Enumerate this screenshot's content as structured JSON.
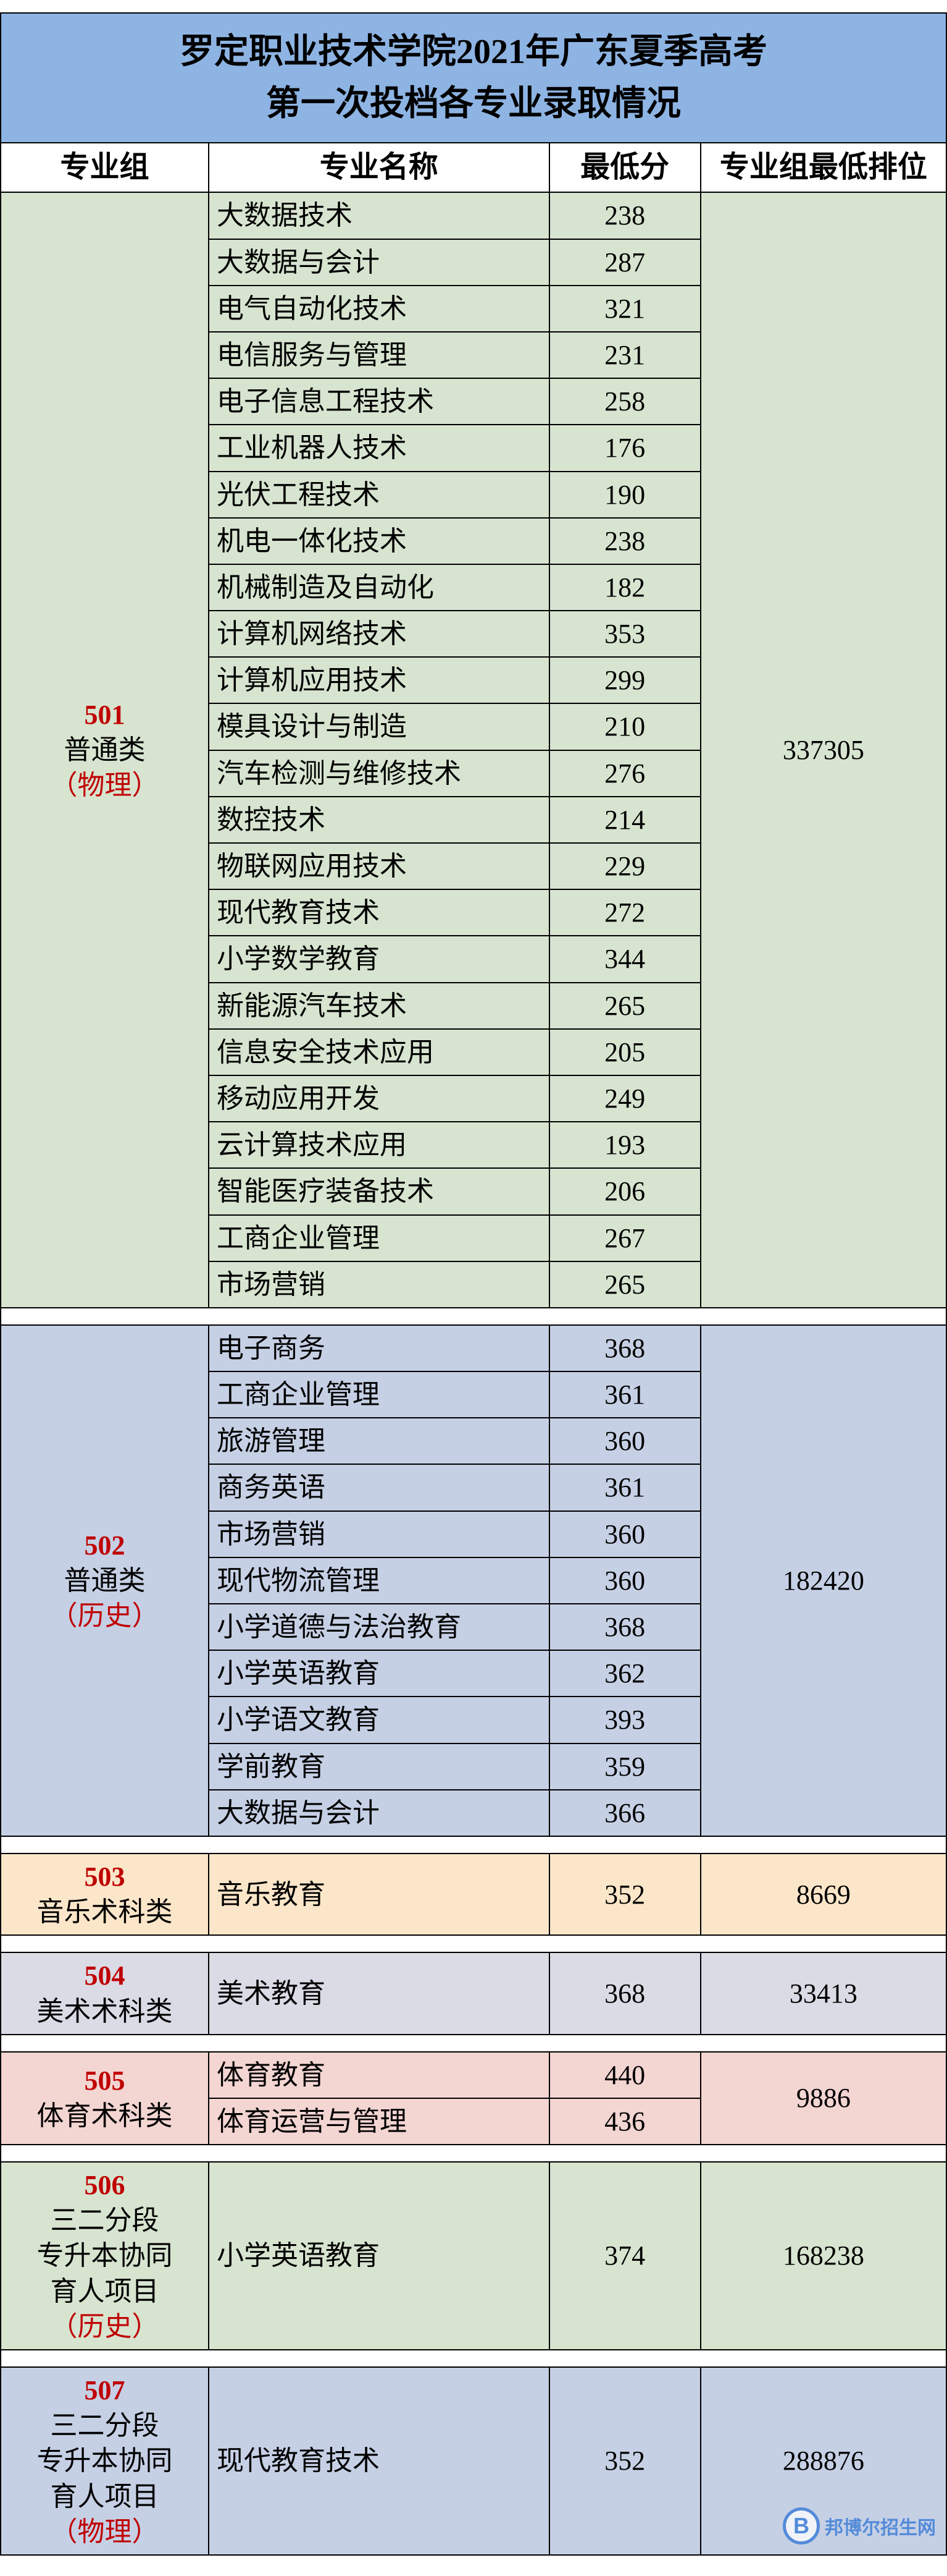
{
  "title_line1": "罗定职业技术学院2021年广东夏季高考",
  "title_line2": "第一次投档各专业录取情况",
  "headers": {
    "group": "专业组",
    "major": "专业名称",
    "min_score": "最低分",
    "min_rank": "专业组最低排位"
  },
  "colors": {
    "title_bg": "#8eb4e3",
    "header_bg": "#ffffff",
    "spacer_bg": "#ffffff",
    "code_color": "#c00000",
    "subject_color": "#c00000",
    "text_color": "#000000",
    "border_color": "#000000",
    "group_bg": {
      "g501": "#d7e4d0",
      "g502": "#c6d0e5",
      "g503": "#fce6c9",
      "g504": "#dadbe5",
      "g505": "#f3d5d2",
      "g506": "#d7e4d0",
      "g507": "#c6d0e5"
    }
  },
  "fonts": {
    "title_size_pt": 42,
    "header_size_pt": 36,
    "body_size_pt": 33
  },
  "col_widths_pct": [
    22,
    36,
    16,
    26
  ],
  "groups": [
    {
      "id": "g501",
      "code": "501",
      "category": "普通类",
      "subject": "（物理）",
      "rank": "337305",
      "majors": [
        {
          "name": "大数据技术",
          "score": "238"
        },
        {
          "name": "大数据与会计",
          "score": "287"
        },
        {
          "name": "电气自动化技术",
          "score": "321"
        },
        {
          "name": "电信服务与管理",
          "score": "231"
        },
        {
          "name": "电子信息工程技术",
          "score": "258"
        },
        {
          "name": "工业机器人技术",
          "score": "176"
        },
        {
          "name": "光伏工程技术",
          "score": "190"
        },
        {
          "name": "机电一体化技术",
          "score": "238"
        },
        {
          "name": "机械制造及自动化",
          "score": "182"
        },
        {
          "name": "计算机网络技术",
          "score": "353"
        },
        {
          "name": "计算机应用技术",
          "score": "299"
        },
        {
          "name": "模具设计与制造",
          "score": "210"
        },
        {
          "name": "汽车检测与维修技术",
          "score": "276"
        },
        {
          "name": "数控技术",
          "score": "214"
        },
        {
          "name": "物联网应用技术",
          "score": "229"
        },
        {
          "name": "现代教育技术",
          "score": "272"
        },
        {
          "name": "小学数学教育",
          "score": "344"
        },
        {
          "name": "新能源汽车技术",
          "score": "265"
        },
        {
          "name": "信息安全技术应用",
          "score": "205"
        },
        {
          "name": "移动应用开发",
          "score": "249"
        },
        {
          "name": "云计算技术应用",
          "score": "193"
        },
        {
          "name": "智能医疗装备技术",
          "score": "206"
        },
        {
          "name": "工商企业管理",
          "score": "267"
        },
        {
          "name": "市场营销",
          "score": "265"
        }
      ]
    },
    {
      "id": "g502",
      "code": "502",
      "category": "普通类",
      "subject": "（历史）",
      "rank": "182420",
      "majors": [
        {
          "name": "电子商务",
          "score": "368"
        },
        {
          "name": "工商企业管理",
          "score": "361"
        },
        {
          "name": "旅游管理",
          "score": "360"
        },
        {
          "name": "商务英语",
          "score": "361"
        },
        {
          "name": "市场营销",
          "score": "360"
        },
        {
          "name": "现代物流管理",
          "score": "360"
        },
        {
          "name": "小学道德与法治教育",
          "score": "368"
        },
        {
          "name": "小学英语教育",
          "score": "362"
        },
        {
          "name": "小学语文教育",
          "score": "393"
        },
        {
          "name": "学前教育",
          "score": "359"
        },
        {
          "name": "大数据与会计",
          "score": "366"
        }
      ]
    },
    {
      "id": "g503",
      "code": "503",
      "category": "音乐术科类",
      "subject": "",
      "rank": "8669",
      "majors": [
        {
          "name": "音乐教育",
          "score": "352"
        }
      ]
    },
    {
      "id": "g504",
      "code": "504",
      "category": "美术术科类",
      "subject": "",
      "rank": "33413",
      "majors": [
        {
          "name": "美术教育",
          "score": "368"
        }
      ]
    },
    {
      "id": "g505",
      "code": "505",
      "category": "体育术科类",
      "subject": "",
      "rank": "9886",
      "majors": [
        {
          "name": "体育教育",
          "score": "440"
        },
        {
          "name": "体育运营与管理",
          "score": "436"
        }
      ]
    },
    {
      "id": "g506",
      "code": "506",
      "category": "三二分段\n专升本协同\n育人项目",
      "subject": "（历史）",
      "rank": "168238",
      "majors": [
        {
          "name": "小学英语教育",
          "score": "374"
        }
      ]
    },
    {
      "id": "g507",
      "code": "507",
      "category": "三二分段\n专升本协同\n育人项目",
      "subject": "（物理）",
      "rank": "288876",
      "majors": [
        {
          "name": "现代教育技术",
          "score": "352"
        }
      ]
    }
  ],
  "watermark": {
    "logo_letter": "B",
    "text": "邦博尔招生网"
  }
}
